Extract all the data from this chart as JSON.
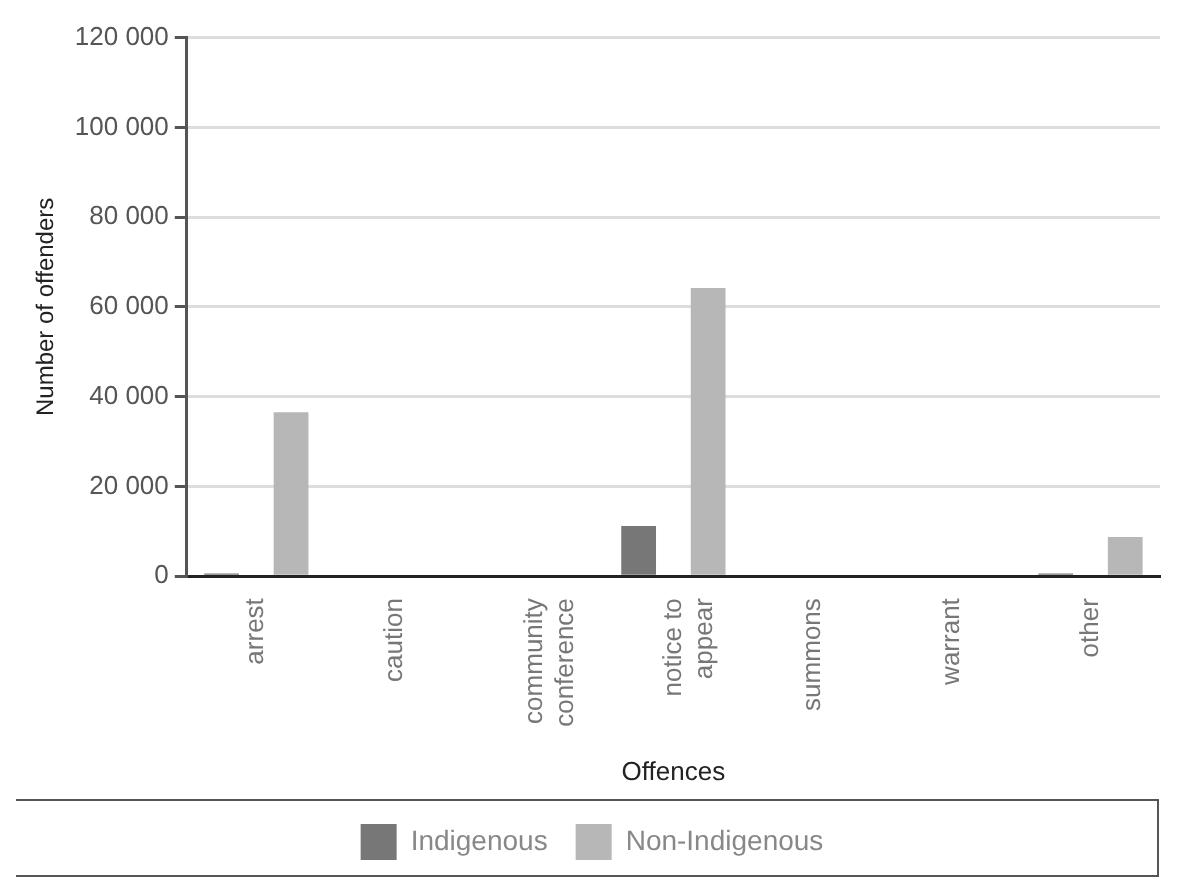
{
  "chart_data": {
    "type": "bar",
    "xlabel": "Offences",
    "ylabel": "Number of offenders",
    "categories": [
      "arrest",
      "caution",
      "community conference",
      "notice to appear",
      "summons",
      "warrant",
      "other"
    ],
    "series": [
      {
        "name": "Indigenous",
        "color": "#777777",
        "values": [
          600,
          0,
          0,
          11200,
          0,
          0,
          600
        ]
      },
      {
        "name": "Non-Indigenous",
        "color": "#b7b7b8",
        "values": [
          36500,
          0,
          0,
          64200,
          0,
          0,
          8700
        ]
      }
    ],
    "ylim": [
      0,
      120000
    ],
    "yticks": [
      0,
      {
        "value": 20000,
        "label": "20 000"
      },
      {
        "value": 40000,
        "label": "40 000"
      },
      {
        "value": 60000,
        "label": "60 000"
      },
      {
        "value": 80000,
        "label": "80 000"
      },
      {
        "value": 100000,
        "label": "100 000"
      },
      {
        "value": 120000,
        "label": "120 000"
      }
    ],
    "grid": "y",
    "legend": "bottom"
  }
}
